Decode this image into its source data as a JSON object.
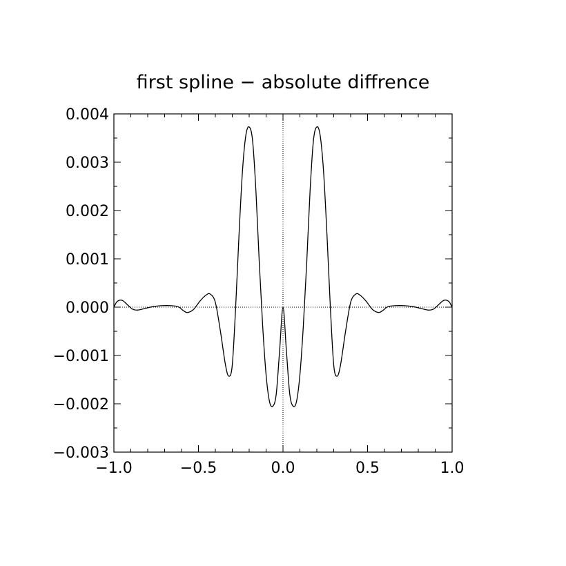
{
  "chart_data": {
    "type": "line",
    "title": "first spline − absolute diffrence",
    "xlabel": "",
    "ylabel": "",
    "xlim": [
      -1.0,
      1.0
    ],
    "ylim": [
      -0.003,
      0.004
    ],
    "x_ticks": [
      {
        "value": -1.0,
        "label": "−1.0"
      },
      {
        "value": -0.5,
        "label": "−0.5"
      },
      {
        "value": 0.0,
        "label": "0.0"
      },
      {
        "value": 0.5,
        "label": "0.5"
      },
      {
        "value": 1.0,
        "label": "1.0"
      }
    ],
    "y_ticks": [
      {
        "value": -0.003,
        "label": "−0.003"
      },
      {
        "value": -0.002,
        "label": "−0.002"
      },
      {
        "value": -0.001,
        "label": "−0.001"
      },
      {
        "value": 0.0,
        "label": "0.000"
      },
      {
        "value": 0.001,
        "label": "0.001"
      },
      {
        "value": 0.002,
        "label": "0.002"
      },
      {
        "value": 0.003,
        "label": "0.003"
      },
      {
        "value": 0.004,
        "label": "0.004"
      }
    ],
    "x_minor_step": 0.1,
    "y_minor_step": 0.0005,
    "zero_lines": true,
    "grid": false,
    "series": [
      {
        "color": "#000000",
        "points": [
          [
            -1.0,
            0.0
          ],
          [
            -0.98,
            0.00012
          ],
          [
            -0.95,
            0.00014
          ],
          [
            -0.92,
            5e-05
          ],
          [
            -0.89,
            -4e-05
          ],
          [
            -0.86,
            -6e-05
          ],
          [
            -0.82,
            -3e-05
          ],
          [
            -0.77,
            1e-05
          ],
          [
            -0.72,
            3e-05
          ],
          [
            -0.66,
            3e-05
          ],
          [
            -0.62,
            1e-05
          ],
          [
            -0.59,
            -7e-05
          ],
          [
            -0.565,
            -0.00011
          ],
          [
            -0.53,
            -5e-05
          ],
          [
            -0.49,
            0.00013
          ],
          [
            -0.455,
            0.00025
          ],
          [
            -0.43,
            0.00027
          ],
          [
            -0.4,
            0.0001
          ],
          [
            -0.37,
            -0.0005
          ],
          [
            -0.34,
            -0.0012
          ],
          [
            -0.32,
            -0.00143
          ],
          [
            -0.3,
            -0.0012
          ],
          [
            -0.28,
            0.0
          ],
          [
            -0.26,
            0.0015
          ],
          [
            -0.24,
            0.0028
          ],
          [
            -0.22,
            0.00355
          ],
          [
            -0.2,
            0.00373
          ],
          [
            -0.18,
            0.00345
          ],
          [
            -0.16,
            0.0024
          ],
          [
            -0.14,
            0.0009
          ],
          [
            -0.12,
            -0.0004
          ],
          [
            -0.1,
            -0.0014
          ],
          [
            -0.08,
            -0.00195
          ],
          [
            -0.06,
            -0.00205
          ],
          [
            -0.04,
            -0.0018
          ],
          [
            -0.02,
            -0.0009
          ],
          [
            0.0,
            0.0
          ],
          [
            0.02,
            -0.0009
          ],
          [
            0.04,
            -0.0018
          ],
          [
            0.06,
            -0.00205
          ],
          [
            0.08,
            -0.00195
          ],
          [
            0.1,
            -0.0014
          ],
          [
            0.12,
            -0.0004
          ],
          [
            0.14,
            0.0009
          ],
          [
            0.16,
            0.0024
          ],
          [
            0.18,
            0.00345
          ],
          [
            0.2,
            0.00373
          ],
          [
            0.22,
            0.00355
          ],
          [
            0.24,
            0.0028
          ],
          [
            0.26,
            0.0015
          ],
          [
            0.28,
            0.0
          ],
          [
            0.3,
            -0.0012
          ],
          [
            0.32,
            -0.00143
          ],
          [
            0.34,
            -0.0012
          ],
          [
            0.37,
            -0.0005
          ],
          [
            0.4,
            0.0001
          ],
          [
            0.43,
            0.00027
          ],
          [
            0.455,
            0.00025
          ],
          [
            0.49,
            0.00013
          ],
          [
            0.53,
            -5e-05
          ],
          [
            0.565,
            -0.00011
          ],
          [
            0.59,
            -7e-05
          ],
          [
            0.62,
            1e-05
          ],
          [
            0.66,
            3e-05
          ],
          [
            0.72,
            3e-05
          ],
          [
            0.77,
            1e-05
          ],
          [
            0.82,
            -3e-05
          ],
          [
            0.86,
            -6e-05
          ],
          [
            0.89,
            -4e-05
          ],
          [
            0.92,
            5e-05
          ],
          [
            0.95,
            0.00014
          ],
          [
            0.98,
            0.00012
          ],
          [
            1.0,
            0.0
          ]
        ]
      }
    ]
  }
}
